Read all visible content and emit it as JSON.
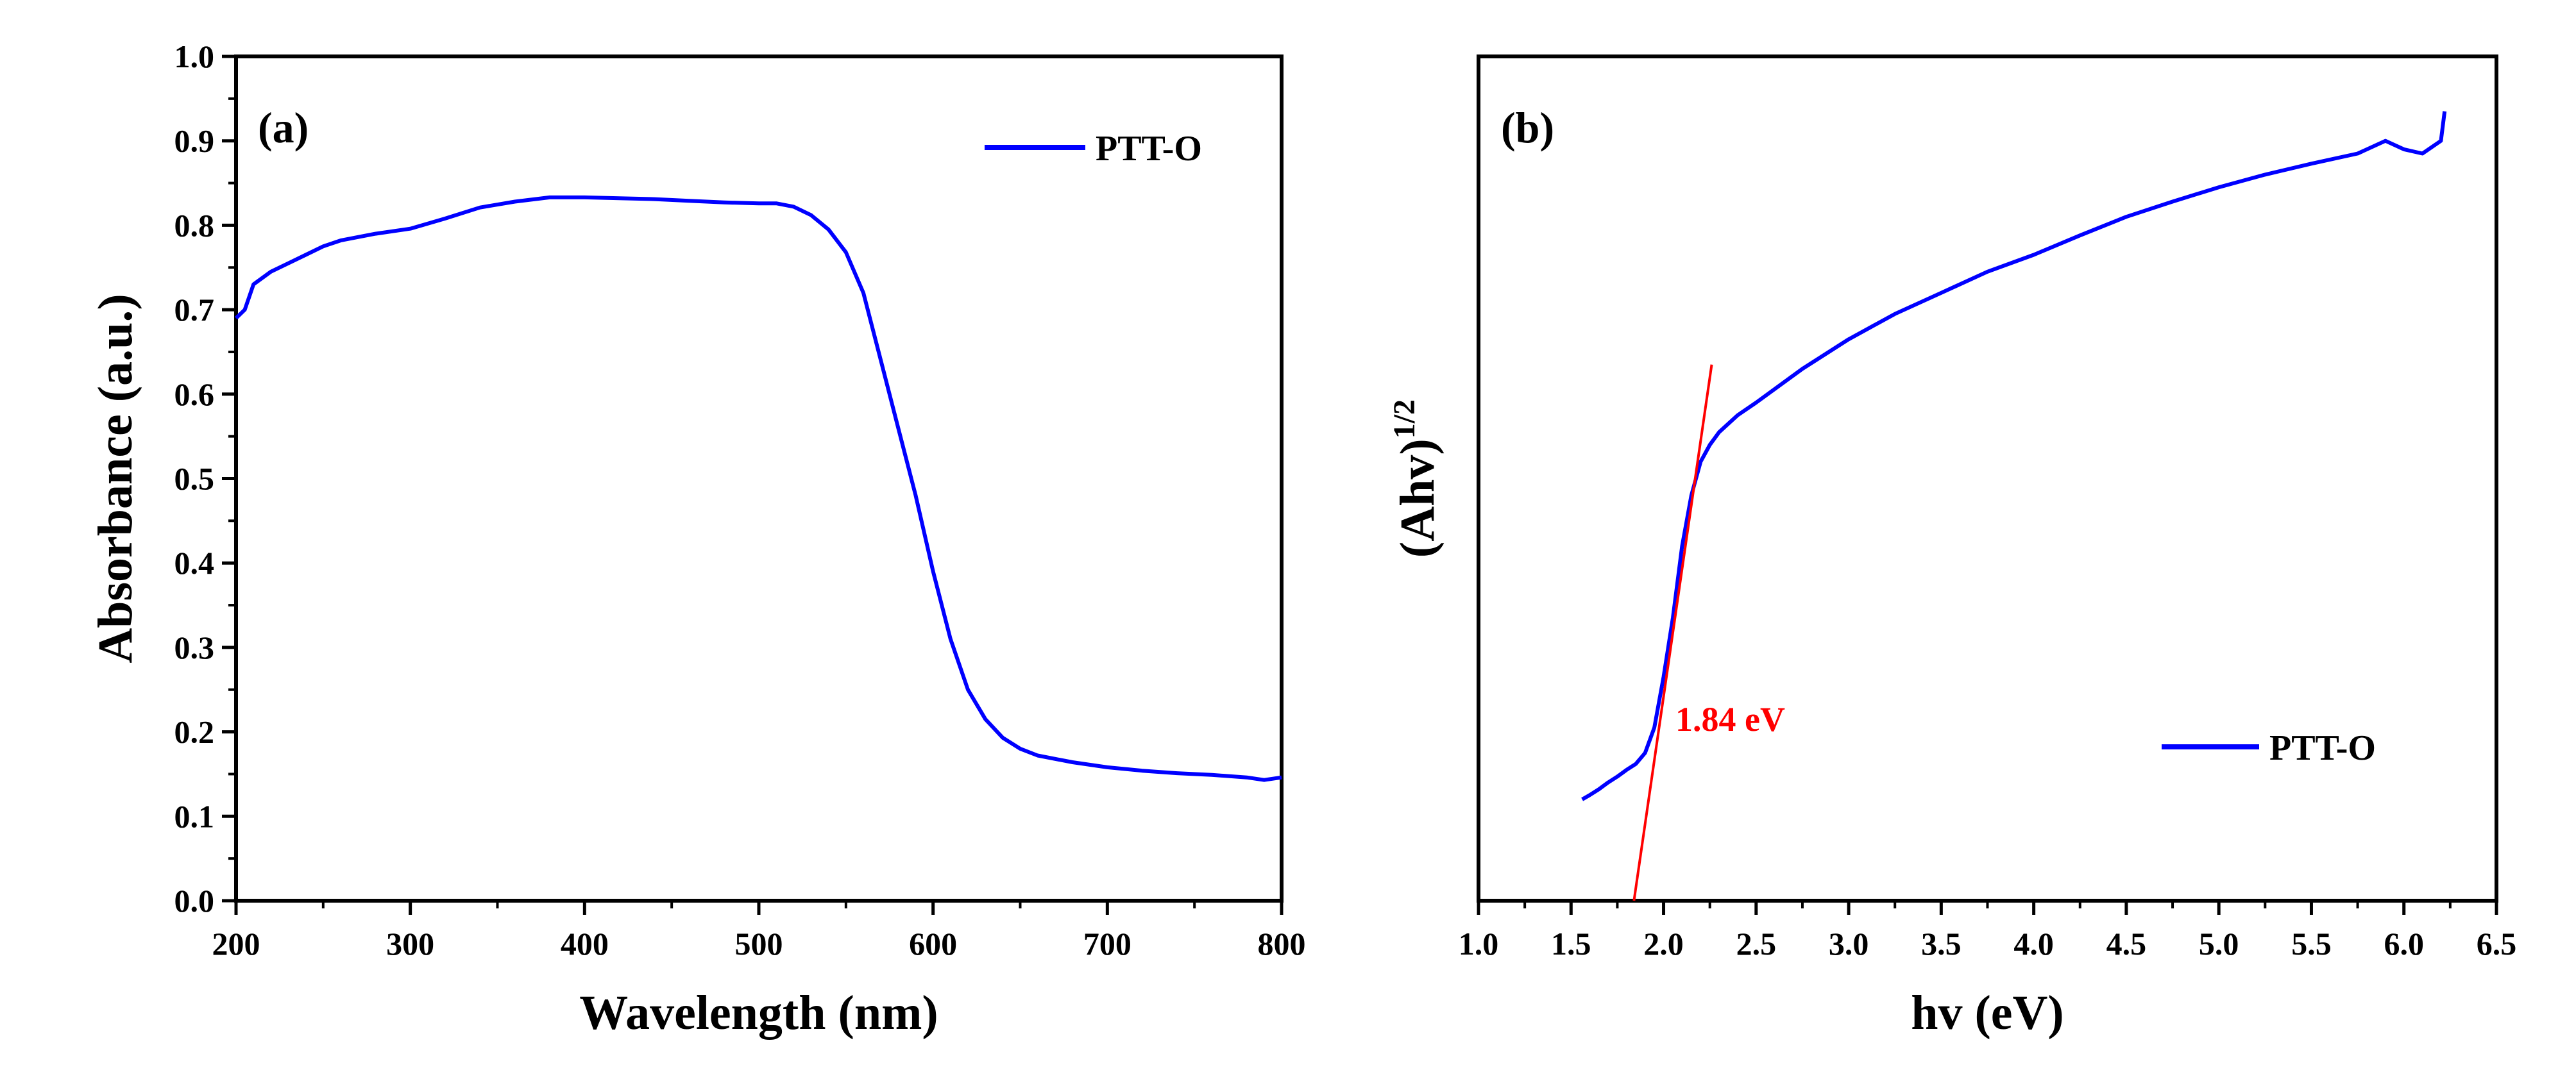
{
  "colors": {
    "series": "#0000ff",
    "fit_line": "#ff0000",
    "axis": "#000000",
    "background": "#ffffff"
  },
  "chart_data": [
    {
      "type": "line",
      "panel_label": "(a)",
      "title": "",
      "xlabel": "Wavelength (nm)",
      "ylabel": "Absorbance (a.u.)",
      "xlim": [
        200,
        800
      ],
      "ylim": [
        0.0,
        1.0
      ],
      "x_ticks": [
        200,
        300,
        400,
        500,
        600,
        700,
        800
      ],
      "x_tick_labels": [
        "200",
        "300",
        "400",
        "500",
        "600",
        "700",
        "800"
      ],
      "y_ticks": [
        0.0,
        0.1,
        0.2,
        0.3,
        0.4,
        0.5,
        0.6,
        0.7,
        0.8,
        0.9,
        1.0
      ],
      "y_tick_labels": [
        "0.0",
        "0.1",
        "0.2",
        "0.3",
        "0.4",
        "0.5",
        "0.6",
        "0.7",
        "0.8",
        "0.9",
        "1.0"
      ],
      "legend": {
        "entries": [
          "PTT-O"
        ],
        "position": "top-right"
      },
      "grid": false,
      "series": [
        {
          "name": "PTT-O",
          "x": [
            200,
            205,
            210,
            220,
            230,
            240,
            250,
            260,
            280,
            300,
            320,
            340,
            360,
            380,
            400,
            420,
            440,
            460,
            480,
            500,
            510,
            520,
            530,
            540,
            550,
            560,
            570,
            580,
            590,
            600,
            610,
            620,
            630,
            640,
            650,
            660,
            680,
            700,
            720,
            740,
            760,
            780,
            790,
            800
          ],
          "values": [
            0.69,
            0.7,
            0.73,
            0.745,
            0.755,
            0.765,
            0.775,
            0.782,
            0.79,
            0.796,
            0.808,
            0.821,
            0.828,
            0.833,
            0.833,
            0.832,
            0.831,
            0.829,
            0.827,
            0.826,
            0.826,
            0.822,
            0.812,
            0.795,
            0.768,
            0.72,
            0.64,
            0.56,
            0.48,
            0.39,
            0.31,
            0.25,
            0.215,
            0.193,
            0.18,
            0.172,
            0.164,
            0.158,
            0.154,
            0.151,
            0.149,
            0.146,
            0.143,
            0.146
          ]
        }
      ]
    },
    {
      "type": "line",
      "panel_label": "(b)",
      "title": "",
      "xlabel": "hv (eV)",
      "ylabel_main": "(Ahv)",
      "ylabel_sup": "1/2",
      "xlim": [
        1.0,
        6.5
      ],
      "ylim": [
        0.0,
        1.0
      ],
      "x_ticks": [
        1.0,
        1.5,
        2.0,
        2.5,
        3.0,
        3.5,
        4.0,
        4.5,
        5.0,
        5.5,
        6.0,
        6.5
      ],
      "x_tick_labels": [
        "1.0",
        "1.5",
        "2.0",
        "2.5",
        "3.0",
        "3.5",
        "4.0",
        "4.5",
        "5.0",
        "5.5",
        "6.0",
        "6.5"
      ],
      "y_ticks_visible": false,
      "legend": {
        "entries": [
          "PTT-O"
        ],
        "position": "bottom-right"
      },
      "grid": false,
      "annotation": {
        "text": "1.84 eV",
        "value_ev": 1.84
      },
      "fit_line": {
        "x": [
          1.84,
          2.26
        ],
        "values": [
          0.0,
          0.635
        ]
      },
      "series": [
        {
          "name": "PTT-O",
          "x": [
            1.56,
            1.6,
            1.65,
            1.7,
            1.75,
            1.8,
            1.85,
            1.9,
            1.95,
            2.0,
            2.05,
            2.1,
            2.15,
            2.2,
            2.25,
            2.3,
            2.4,
            2.5,
            2.75,
            3.0,
            3.25,
            3.5,
            3.75,
            4.0,
            4.25,
            4.5,
            4.75,
            5.0,
            5.25,
            5.5,
            5.75,
            5.9,
            6.0,
            6.1,
            6.2,
            6.22
          ],
          "values": [
            0.12,
            0.125,
            0.132,
            0.14,
            0.147,
            0.155,
            0.162,
            0.175,
            0.205,
            0.265,
            0.335,
            0.42,
            0.48,
            0.52,
            0.54,
            0.555,
            0.575,
            0.59,
            0.63,
            0.665,
            0.695,
            0.72,
            0.745,
            0.765,
            0.788,
            0.81,
            0.828,
            0.845,
            0.86,
            0.873,
            0.885,
            0.9,
            0.89,
            0.885,
            0.9,
            0.935
          ]
        }
      ]
    }
  ]
}
